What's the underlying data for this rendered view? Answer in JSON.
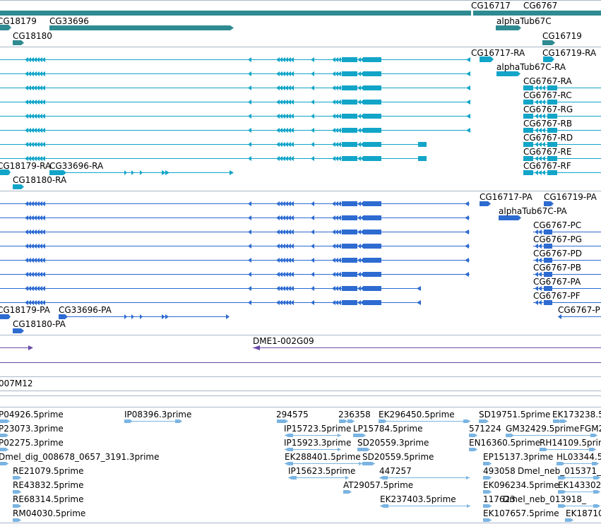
{
  "colors": {
    "gene": "#2e8b91",
    "transcript": "#12a5c8",
    "protein": "#2d6bd1",
    "clone": "#6a4ba7",
    "est": "#7ab4e2",
    "border": "#a9b6c6",
    "background": "#ffffff"
  },
  "tracks": {
    "genes": {
      "labels": [
        "CG18179",
        "CG33696",
        "CG18180",
        "CG16717",
        "CG6767",
        "alphaTub67C",
        "CG16719"
      ]
    },
    "transcripts": {
      "labels": [
        "CG16717-RA",
        "CG16719-RA",
        "alphaTub67C-RA",
        "CG6767-RA",
        "CG6767-RC",
        "CG6767-RG",
        "CG6767-RB",
        "CG6767-RD",
        "CG6767-RE",
        "CG6767-RF",
        "CG18179-RA",
        "CG33696-RA",
        "CG18180-RA"
      ]
    },
    "proteins": {
      "labels": [
        "CG16717-PA",
        "CG16719-PA",
        "alphaTub67C-PA",
        "CG6767-PC",
        "CG6767-PG",
        "CG6767-PD",
        "CG6767-PB",
        "CG6767-PA",
        "CG6767-PF",
        "CG18179-PA",
        "CG33696-PA",
        "CG18180-PA",
        "CG6767-P"
      ]
    },
    "clones": {
      "labels": [
        "DME1-002G09",
        "007M12"
      ]
    },
    "ests": {
      "labels": [
        "P04926.5prime",
        "IP08396.3prime",
        "294575",
        "236358",
        "EK296450.5prime",
        "SD19751.5prime",
        "EK173238.5",
        "P23073.3prime",
        "IP15723.5prime",
        "LP15784.5prime",
        "571224",
        "GM32429.5prime",
        "FGM2",
        "P02275.3prime",
        "IP15923.3prime",
        "SD20559.3prime",
        "EN16360.5prime",
        "RH14109.5prime",
        "Dmel_dig_008678_0657_3191.3prime",
        "EK288401.5prime",
        "SD20559.5prime",
        "EP15137.3prime",
        "HL03344.5",
        "RE21079.5prime",
        "IP15623.5prime",
        "447257",
        "493058",
        "Dmel_neb_015371_",
        "RE43832.5prime",
        "AT29057.5prime",
        "EK096234.5prime",
        "EK143302",
        "RE68314.5prime",
        "EK237403.5prime",
        "117623",
        "Dmel_neb_013918_",
        "RM04030.5prime",
        "EK107657.5prime",
        "EK18710"
      ]
    }
  }
}
